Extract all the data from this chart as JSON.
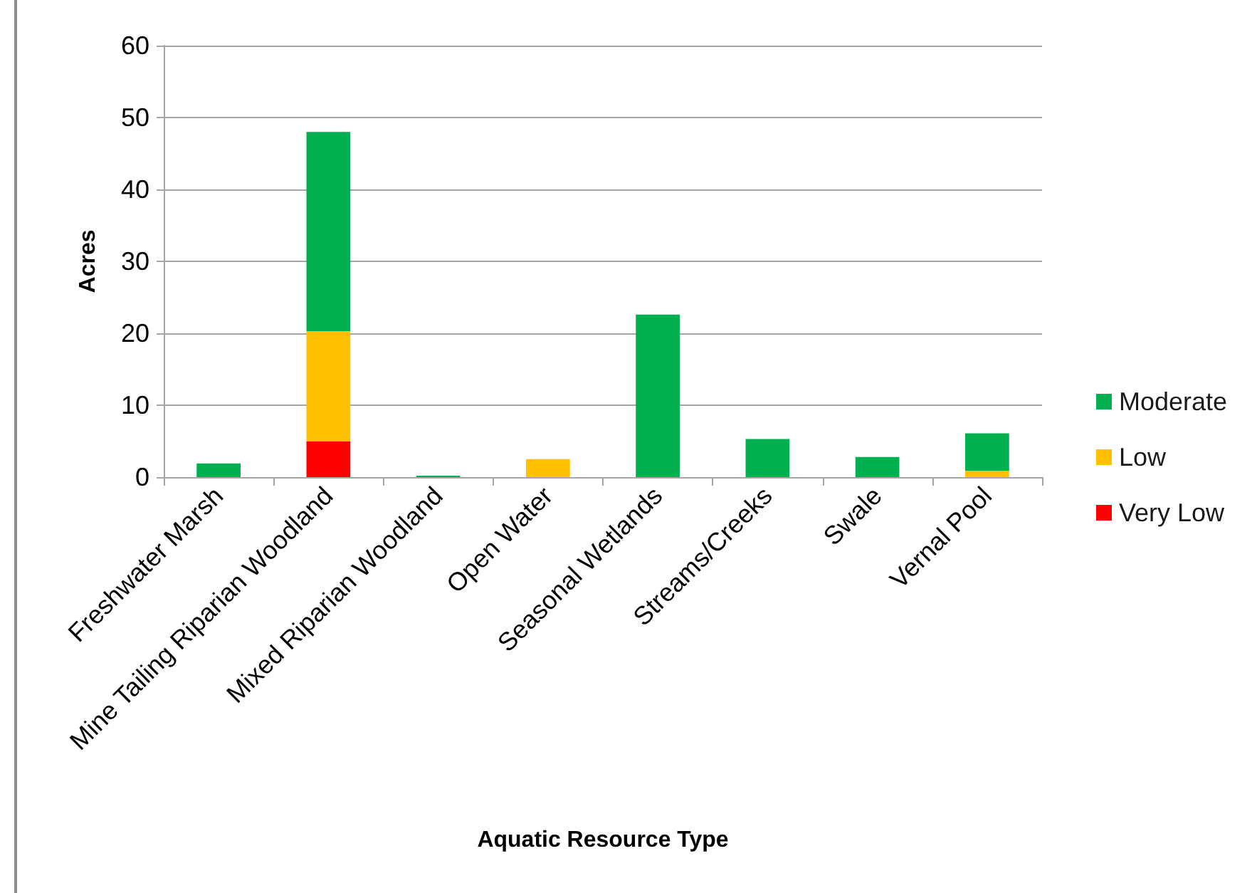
{
  "chart_data": {
    "type": "bar",
    "xlabel": "Aquatic Resource Type",
    "ylabel": "Acres",
    "categories": [
      "Freshwater Marsh",
      "Mine Tailing Riparian Woodland",
      "Mixed Riparian Woodland",
      "Open Water",
      "Seasonal Wetlands",
      "Streams/Creeks",
      "Swale",
      "Vernal Pool"
    ],
    "stacked": true,
    "series": [
      {
        "name": "Very Low",
        "color": "#ff0000",
        "values": [
          null,
          5.0,
          null,
          null,
          null,
          null,
          null,
          null
        ]
      },
      {
        "name": "Low",
        "color": "#ffc000",
        "values": [
          null,
          15.3,
          null,
          2.5,
          null,
          null,
          null,
          0.9
        ]
      },
      {
        "name": "Moderate",
        "color": "#00b050",
        "values": [
          1.9,
          27.7,
          0.2,
          null,
          22.6,
          5.3,
          2.8,
          5.2
        ]
      }
    ],
    "ylim": [
      0,
      60
    ],
    "yticks": [
      0,
      10,
      20,
      30,
      40,
      50,
      60
    ],
    "grid": "y",
    "legend": "right"
  }
}
